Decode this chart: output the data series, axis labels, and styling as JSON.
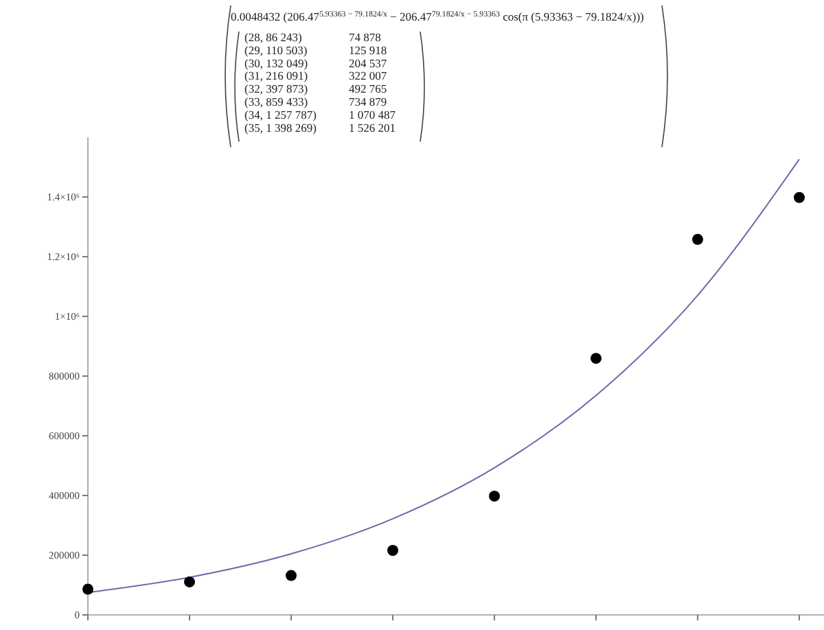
{
  "chart_data": {
    "type": "scatter",
    "annotations": [
      "0.0048432 (206.47$^{5.93363 − 79.1824/x}$ − 206.47$^{79.1824/x − 5.93363}$ cos(π (5.93363 − 79.1824/x)))",
      "(28, 86 243)",
      "74 878",
      "(29, 110 503)",
      "125 918",
      "(30, 132 049)",
      "204 537",
      "(31, 216 091)",
      "322 007",
      "(32, 397 873)",
      "492 765",
      "(33, 859 433)",
      "734 879",
      "(34, 1 257 787)",
      "1 070 487",
      "(35, 1 398 269)",
      "1 526 201"
    ],
    "categories": [
      null,
      null,
      null,
      null,
      null,
      null,
      null,
      null
    ],
    "series": [
      {
        "color": "#000000",
        "marker": "circle",
        "values": [
          86243,
          110503,
          132049,
          216091,
          397873,
          859433,
          1257787,
          1398269
        ]
      },
      {
        "type": "line",
        "color": "#6a6aa8",
        "marker": "none",
        "values": [
          74878,
          125918,
          204537,
          322007,
          492765,
          734879,
          1070487,
          1526201
        ]
      }
    ],
    "ylim": [
      0,
      1600000
    ],
    "yticks": [
      0,
      200000,
      400000,
      600000,
      800000,
      {
        "value": 1000000,
        "label": "1×10⁶"
      },
      {
        "value": 1200000,
        "label": "1.2×10⁶"
      },
      {
        "value": 1400000,
        "label": "1.4×10⁶"
      }
    ],
    "tick_labels": "y"
  }
}
